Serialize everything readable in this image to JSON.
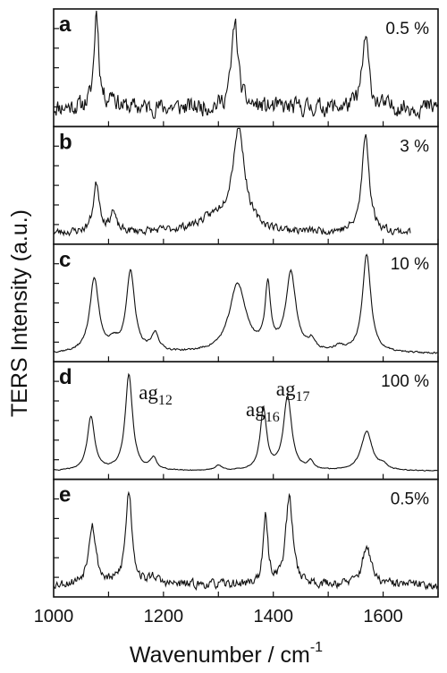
{
  "chart_data": {
    "type": "line",
    "layout": "stacked-panels",
    "xlabel": "Wavenumber / cm-1",
    "ylabel": "TERS Intensity (a.u.)",
    "xlim": [
      1000,
      1700
    ],
    "xticks": [
      1000,
      1200,
      1400,
      1600
    ],
    "tick_labels": [
      "1000",
      "1200",
      "1400",
      "1600"
    ],
    "panels": [
      {
        "letter": "a",
        "label": "0.5 %",
        "noise": 0.08,
        "baseline": 0.12,
        "seed": 11,
        "peaks": [
          [
            1078,
            1.0,
            5
          ],
          [
            1107,
            0.14,
            6
          ],
          [
            1330,
            0.88,
            7
          ],
          [
            1568,
            0.72,
            7
          ]
        ]
      },
      {
        "letter": "b",
        "label": "3 %",
        "noise": 0.035,
        "baseline": 0.04,
        "seed": 23,
        "x_end": 1650,
        "peaks": [
          [
            1078,
            0.5,
            7
          ],
          [
            1108,
            0.2,
            6
          ],
          [
            1337,
            1.0,
            13
          ],
          [
            1568,
            1.0,
            8
          ],
          [
            1300,
            0.15,
            45
          ]
        ]
      },
      {
        "letter": "c",
        "label": "10 %",
        "noise": 0.008,
        "baseline": 0.01,
        "seed": 37,
        "peaks": [
          [
            1074,
            0.75,
            10
          ],
          [
            1140,
            0.83,
            9
          ],
          [
            1185,
            0.18,
            8
          ],
          [
            1110,
            0.08,
            10
          ],
          [
            1335,
            0.7,
            18
          ],
          [
            1390,
            0.64,
            6
          ],
          [
            1432,
            0.8,
            11
          ],
          [
            1470,
            0.1,
            7
          ],
          [
            1520,
            0.05,
            10
          ],
          [
            1570,
            1.0,
            9
          ]
        ]
      },
      {
        "letter": "d",
        "label": "100 %",
        "noise": 0.004,
        "baseline": 0.01,
        "seed": 41,
        "peaks": [
          [
            1068,
            0.55,
            8
          ],
          [
            1137,
            0.98,
            8
          ],
          [
            1182,
            0.12,
            7
          ],
          [
            1300,
            0.05,
            8
          ],
          [
            1382,
            0.62,
            7
          ],
          [
            1426,
            0.75,
            9
          ],
          [
            1468,
            0.08,
            6
          ],
          [
            1570,
            0.4,
            12
          ],
          [
            1600,
            0.05,
            8
          ]
        ]
      },
      {
        "letter": "e",
        "label": "0.5%",
        "noise": 0.04,
        "baseline": 0.05,
        "seed": 53,
        "peaks": [
          [
            1070,
            0.62,
            8
          ],
          [
            1137,
            0.95,
            7
          ],
          [
            1182,
            0.08,
            8
          ],
          [
            1386,
            0.68,
            5
          ],
          [
            1429,
            0.88,
            8
          ],
          [
            1570,
            0.4,
            9
          ]
        ]
      }
    ],
    "annotations": [
      {
        "text": "ag",
        "sub": "12",
        "panel": 3,
        "x": 1155
      },
      {
        "text": "ag",
        "sub": "16",
        "panel": 3,
        "x": 1350
      },
      {
        "text": "ag",
        "sub": "17",
        "panel": 3,
        "x": 1405
      }
    ]
  }
}
